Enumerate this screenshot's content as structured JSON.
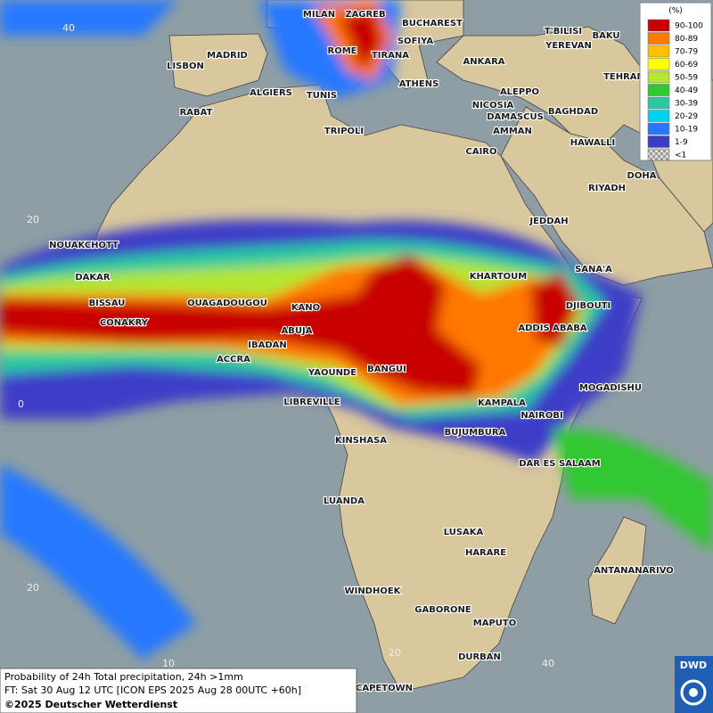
{
  "legend": {
    "title": "(%)",
    "entries": [
      {
        "label": "90-100",
        "color": "#c80000"
      },
      {
        "label": "80-89",
        "color": "#ff7800"
      },
      {
        "label": "70-79",
        "color": "#ffc000"
      },
      {
        "label": "60-69",
        "color": "#ffff00"
      },
      {
        "label": "50-59",
        "color": "#b4e632"
      },
      {
        "label": "40-49",
        "color": "#32c832"
      },
      {
        "label": "30-39",
        "color": "#28c8a0"
      },
      {
        "label": "20-29",
        "color": "#00d2f0"
      },
      {
        "label": "10-19",
        "color": "#2878ff"
      },
      {
        "label": "1-9",
        "color": "#3c3cc8"
      },
      {
        "label": "<1",
        "color": "#b4b4b4"
      }
    ]
  },
  "cities": [
    "MILAN",
    "ZAGREB",
    "BUCHAREST",
    "T'BILISI",
    "BAKU",
    "SOFIYA",
    "YEREVAN",
    "ROME",
    "TIRANA",
    "ANKARA",
    "MADRID",
    "LISBON",
    "TEHRAN",
    "ATHENS",
    "ALGIERS",
    "TUNIS",
    "ALEPPO",
    "RABAT",
    "NICOSIA",
    "BAGHDAD",
    "DAMASCUS",
    "TRIPOLI",
    "AMMAN",
    "HAWALLI",
    "CAIRO",
    "DOHA",
    "RIYADH",
    "JEDDAH",
    "NOUAKCHOTT",
    "SANA'A",
    "KHARTOUM",
    "DAKAR",
    "BISSAU",
    "DJIBOUTI",
    "OUAGADOUGOU",
    "KANO",
    "CONAKRY",
    "ABUJA",
    "ADDIS ABABA",
    "IBADAN",
    "ACCRA",
    "YAOUNDE",
    "BANGUI",
    "MOGADISHU",
    "KAMPALA",
    "LIBREVILLE",
    "NAIROBI",
    "BUJUMBURA",
    "KINSHASA",
    "DAR ES SALAAM",
    "LUANDA",
    "LUSAKA",
    "HARARE",
    "ANTANANARIVO",
    "WINDHOEK",
    "GABORONE",
    "MAPUTO",
    "DURBAN",
    "CAPETOWN"
  ],
  "grid_labels": {
    "lat": [
      "40",
      "20",
      "0",
      "20"
    ],
    "lon": [
      "10",
      "20",
      "40"
    ]
  },
  "footer": {
    "line1": "Probability of 24h Total precipitation, 24h >1mm",
    "line2": "FT: Sat 30 Aug 12 UTC [ICON EPS 2025 Aug 28 00UTC +60h]",
    "line3": "©2025 Deutscher Wetterdienst"
  },
  "logo": "DWD"
}
